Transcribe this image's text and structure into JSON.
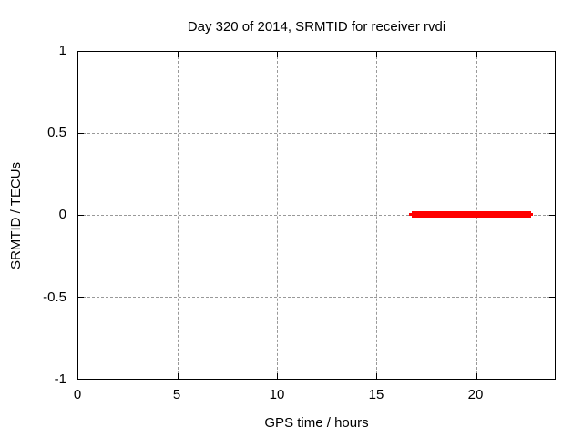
{
  "chart_data": {
    "type": "line",
    "title": "Day 320 of 2014, SRMTID for receiver rvdi",
    "xlabel": "GPS time / hours",
    "ylabel": "SRMTID / TECUs",
    "xlim": [
      0,
      24
    ],
    "ylim": [
      -1,
      1
    ],
    "x_tick_labels": [
      "0",
      "5",
      "10",
      "15",
      "20"
    ],
    "y_tick_labels": [
      "1",
      "0.5",
      "0",
      "-0.5",
      "-1"
    ],
    "x_ticks": [
      0,
      5,
      10,
      15,
      20
    ],
    "y_ticks": [
      1,
      0.5,
      0,
      -0.5,
      -1
    ],
    "grid": true,
    "grid_style": "dashed",
    "legend_position": "none",
    "series": [
      {
        "name": "SRMTID",
        "color": "#ff0000",
        "style": "thick horizontal line segment",
        "segments": [
          {
            "x_start": 16.7,
            "x_end": 22.9,
            "y": 0
          }
        ]
      }
    ]
  },
  "colors": {
    "background": "#ffffff",
    "border": "#000000",
    "grid": "#999999",
    "text": "#000000",
    "series_red": "#ff0000"
  }
}
